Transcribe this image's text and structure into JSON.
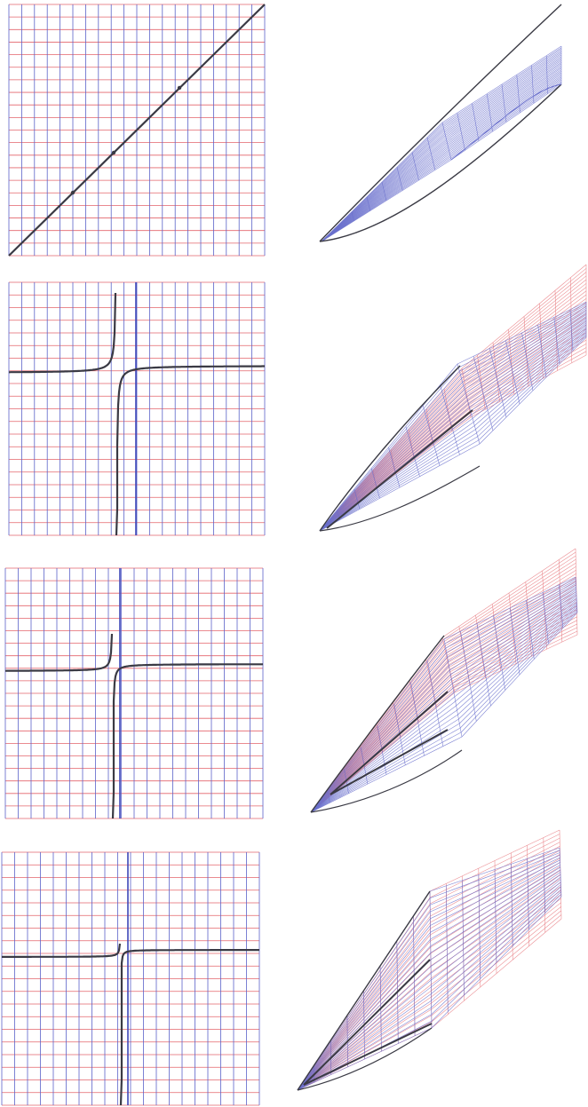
{
  "figure": {
    "description_free": true,
    "colors": {
      "background": "#ffffff",
      "grid_vertical": "#5b63c9",
      "grid_horizontal": "#e3646b",
      "curve": "#3a3a44",
      "axis": "#3c46b8",
      "mesh_blue": "#6a70cc",
      "mesh_red": "#e87a80",
      "outline": "#3a3a44"
    },
    "rows": [
      {
        "id": "row-1",
        "kind": "identity",
        "pole": null,
        "has_mesh_red": false
      },
      {
        "id": "row-2",
        "kind": "hyperbola",
        "pole": -0.3,
        "has_mesh_red": true
      },
      {
        "id": "row-3",
        "kind": "hyperbola",
        "pole": -0.15,
        "has_mesh_red": true
      },
      {
        "id": "row-4",
        "kind": "hyperbola",
        "pole": -0.06,
        "has_mesh_red": true
      }
    ]
  }
}
